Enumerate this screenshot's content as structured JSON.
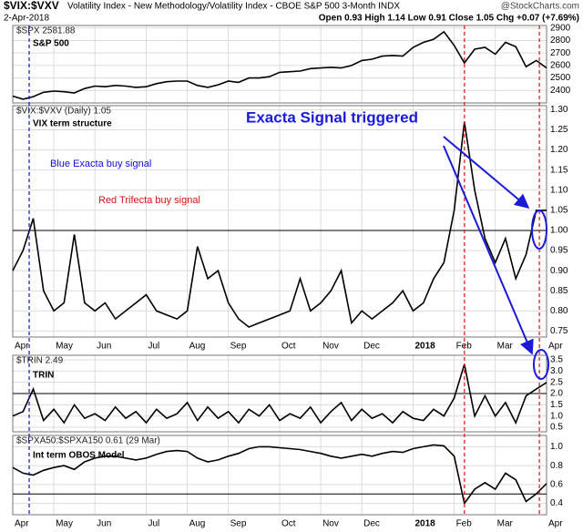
{
  "header": {
    "symbol": "$VIX:$VXV",
    "title": "Volatility Index - New Methodology/Volatility Index - CBOE S&P 500 3-Month INDX",
    "source": "@StockCharts.com",
    "date": "2-Apr-2018",
    "quote": "Open 0.93 High 1.14 Low 0.91 Close 1.05 Chg +0.07 (+7.69%)"
  },
  "chart_data": [
    {
      "type": "line",
      "legend": "$SPX 2581.88",
      "label": "S&P 500",
      "color": "#000000",
      "values": [
        2355,
        2330,
        2350,
        2385,
        2395,
        2390,
        2380,
        2415,
        2435,
        2430,
        2440,
        2435,
        2425,
        2430,
        2455,
        2470,
        2475,
        2475,
        2440,
        2425,
        2445,
        2475,
        2465,
        2500,
        2500,
        2510,
        2545,
        2550,
        2555,
        2575,
        2580,
        2585,
        2580,
        2600,
        2640,
        2650,
        2675,
        2680,
        2675,
        2745,
        2785,
        2810,
        2870,
        2760,
        2620,
        2730,
        2745,
        2690,
        2785,
        2750,
        2590,
        2640,
        2580
      ],
      "ylim": [
        2300,
        2920
      ],
      "yticks": [
        2400,
        2500,
        2600,
        2700,
        2800,
        2900
      ],
      "grid": true
    },
    {
      "type": "line",
      "legend": "$VIX:$VXV (Daily) 1.05",
      "label": "VIX term structure",
      "color": "#000000",
      "annotations": [
        {
          "text": "Blue  Exacta buy signal",
          "color": "#1010d0"
        },
        {
          "text": "Red Trifecta buy signal",
          "color": "#e01010"
        },
        {
          "text": "Exacta Signal triggered",
          "color": "#1a1ad8"
        }
      ],
      "categories": [
        "Apr",
        null,
        null,
        null,
        "May",
        null,
        null,
        null,
        "Jun",
        null,
        null,
        null,
        null,
        "Jul",
        null,
        null,
        null,
        "Aug",
        null,
        null,
        null,
        "Sep",
        null,
        null,
        null,
        null,
        "Oct",
        null,
        null,
        null,
        "Nov",
        null,
        null,
        null,
        "Dec",
        null,
        null,
        null,
        null,
        "2018",
        null,
        null,
        null,
        "Feb",
        null,
        null,
        null,
        "Mar",
        null,
        null,
        null,
        null,
        "Apr"
      ],
      "values": [
        0.9,
        0.95,
        1.03,
        0.85,
        0.8,
        0.82,
        0.99,
        0.82,
        0.8,
        0.82,
        0.78,
        0.8,
        0.82,
        0.84,
        0.8,
        0.79,
        0.78,
        0.8,
        0.96,
        0.88,
        0.9,
        0.82,
        0.78,
        0.76,
        0.77,
        0.78,
        0.79,
        0.8,
        0.88,
        0.8,
        0.82,
        0.85,
        0.9,
        0.77,
        0.8,
        0.78,
        0.8,
        0.82,
        0.85,
        0.8,
        0.82,
        0.88,
        0.92,
        1.05,
        1.27,
        1.1,
        0.98,
        0.92,
        0.98,
        0.88,
        0.94,
        1.05,
        1.05
      ],
      "ylim": [
        0.735,
        1.31
      ],
      "reference_line": 1,
      "yticks": [
        0.75,
        {
          "value": 0.8,
          "label": "0.80"
        },
        0.85,
        {
          "value": 0.9,
          "label": "0.90"
        },
        0.95,
        {
          "value": 1,
          "label": "1.00"
        },
        1.05,
        {
          "value": 1.1,
          "label": "1.10"
        },
        1.15,
        {
          "value": 1.2,
          "label": "1.20"
        },
        1.25,
        {
          "value": 1.3,
          "label": "1.30"
        }
      ],
      "grid": true
    },
    {
      "type": "line",
      "legend": "$TRIN 2.49",
      "label": "TRIN",
      "color": "#000000",
      "values": [
        1.0,
        1.2,
        2.2,
        0.8,
        1.3,
        0.7,
        1.5,
        0.9,
        1.1,
        0.8,
        1.4,
        0.9,
        1.2,
        0.7,
        1.3,
        0.9,
        1.1,
        1.6,
        0.8,
        1.4,
        0.9,
        1.2,
        0.7,
        1.3,
        1.0,
        1.5,
        0.8,
        1.1,
        0.9,
        1.4,
        0.7,
        1.2,
        1.6,
        0.8,
        1.3,
        0.9,
        1.1,
        0.7,
        1.2,
        0.9,
        0.8,
        1.3,
        1.0,
        1.8,
        3.3,
        1.0,
        1.9,
        1.0,
        1.6,
        0.7,
        1.9,
        2.2,
        2.49
      ],
      "ylim": [
        0.3,
        3.7
      ],
      "reference_line": 2,
      "yticks": [
        0.5,
        {
          "value": 1,
          "label": "1.0"
        },
        1.5,
        {
          "value": 2,
          "label": "2.0"
        },
        2.5,
        {
          "value": 3,
          "label": "3.0"
        },
        3.5
      ],
      "grid": true
    },
    {
      "type": "line",
      "legend": "$SPXA50:$SPXA150 0.61 (29 Mar)",
      "label": "Int term OBOS Model",
      "color": "#000000",
      "categories": [
        "Apr",
        null,
        null,
        null,
        "May",
        null,
        null,
        null,
        "Jun",
        null,
        null,
        null,
        null,
        "Jul",
        null,
        null,
        null,
        "Aug",
        null,
        null,
        null,
        "Sep",
        null,
        null,
        null,
        null,
        "Oct",
        null,
        null,
        null,
        "Nov",
        null,
        null,
        null,
        "Dec",
        null,
        null,
        null,
        null,
        "2018",
        null,
        null,
        null,
        "Feb",
        null,
        null,
        null,
        "Mar",
        null,
        null,
        null,
        null,
        "Apr"
      ],
      "values": [
        0.78,
        0.72,
        0.7,
        0.75,
        0.78,
        0.8,
        0.76,
        0.84,
        0.88,
        0.9,
        0.9,
        0.88,
        0.86,
        0.88,
        0.92,
        0.95,
        0.96,
        0.95,
        0.88,
        0.84,
        0.86,
        0.9,
        0.93,
        0.98,
        1.0,
        1.0,
        0.99,
        0.98,
        0.97,
        0.95,
        0.93,
        0.9,
        0.88,
        0.9,
        0.92,
        0.9,
        0.93,
        0.95,
        0.94,
        0.98,
        1.0,
        1.02,
        1.01,
        0.9,
        0.4,
        0.55,
        0.62,
        0.55,
        0.72,
        0.65,
        0.42,
        0.5,
        0.61
      ],
      "ylim": [
        0.28,
        1.12
      ],
      "reference_line": 0.5,
      "yticks": [
        0.4,
        0.6,
        0.8,
        {
          "value": 1,
          "label": "1.0"
        }
      ],
      "grid": true
    }
  ]
}
